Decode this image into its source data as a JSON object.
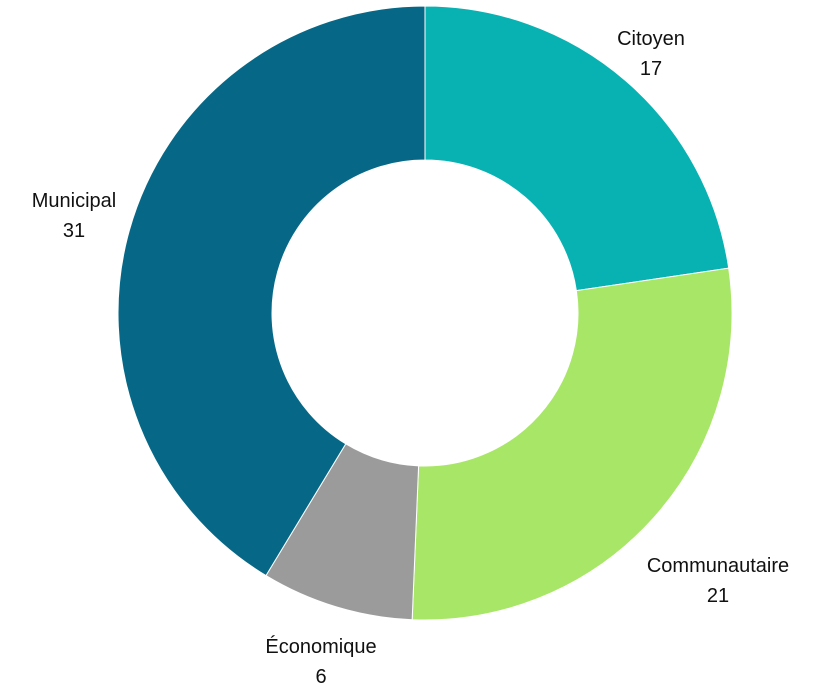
{
  "chart_data": {
    "type": "pie",
    "donut": true,
    "slices": [
      {
        "label": "Citoyen",
        "value": 17,
        "color": "#08B2B2"
      },
      {
        "label": "Communautaire",
        "value": 21,
        "color": "#A8E667"
      },
      {
        "label": "Économique",
        "value": 6,
        "color": "#9B9B9B"
      },
      {
        "label": "Municipal",
        "value": 31,
        "color": "#066886"
      }
    ],
    "start_angle_deg": 0,
    "direction": "clockwise",
    "legend": "none"
  }
}
